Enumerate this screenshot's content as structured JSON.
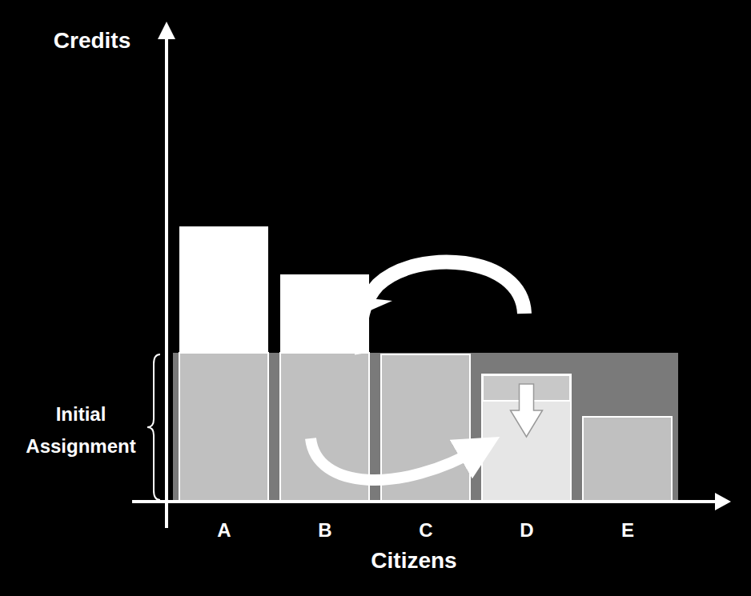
{
  "chart_data": {
    "type": "bar",
    "x_label": "Citizens",
    "y_label": "Credits",
    "categories": [
      "A",
      "B",
      "C",
      "D",
      "E"
    ],
    "values": [
      34.4,
      28.4,
      18.4,
      15.9,
      10.6
    ],
    "colors": [
      "#c0c0c0",
      "#c0c0c0",
      "#c0c0c0",
      "#e6e6e6",
      "#c0c0c0"
    ],
    "initial_assignment": 18.6,
    "annotations": [
      "Initial Assignment"
    ],
    "ylim": [
      0,
      60
    ],
    "tick_labels": "x"
  }
}
